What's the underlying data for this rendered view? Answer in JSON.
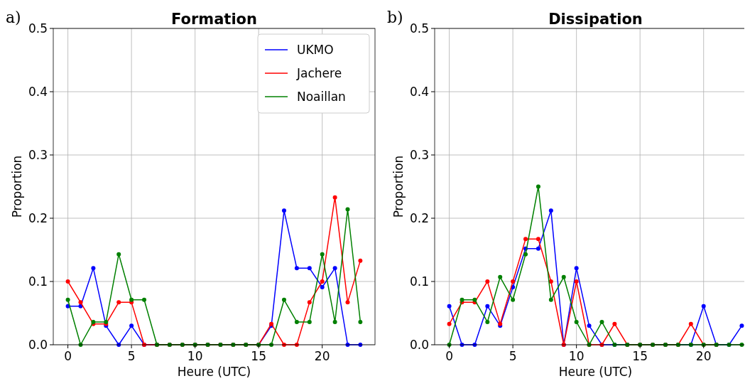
{
  "chart_data": [
    {
      "type": "line",
      "title": "Formation",
      "xlabel": "Heure (UTC)",
      "ylabel": "Proportion",
      "annotations": [
        "a)"
      ],
      "x": [
        0,
        1,
        2,
        3,
        4,
        5,
        6,
        7,
        8,
        9,
        10,
        11,
        12,
        13,
        14,
        15,
        16,
        17,
        18,
        19,
        20,
        21,
        22,
        23
      ],
      "xlim": [
        -1.15,
        24.15
      ],
      "xticks": [
        0,
        5,
        10,
        15,
        20
      ],
      "ylim": [
        0,
        0.5
      ],
      "yticks": [
        {
          "value": 0,
          "label": "0.0"
        },
        {
          "value": 0.1,
          "label": "0.1"
        },
        {
          "value": 0.2,
          "label": "0.2"
        },
        {
          "value": 0.3,
          "label": "0.3"
        },
        {
          "value": 0.4,
          "label": "0.4"
        },
        {
          "value": 0.5,
          "label": "0.5"
        }
      ],
      "grid": true,
      "legend": "top right",
      "marker": "circle",
      "line_style": "solid",
      "series": [
        {
          "name": "UKMO",
          "color": "#0000ff",
          "values": [
            0.061,
            0.061,
            0.121,
            0.03,
            0,
            0.03,
            0,
            0,
            0,
            0,
            0,
            0,
            0,
            0,
            0,
            0,
            0.03,
            0.212,
            0.121,
            0.121,
            0.091,
            0.121,
            0,
            0
          ]
        },
        {
          "name": "Jachere",
          "color": "#ff0000",
          "values": [
            0.1,
            0.067,
            0.033,
            0.033,
            0.067,
            0.067,
            0,
            0,
            0,
            0,
            0,
            0,
            0,
            0,
            0,
            0,
            0.033,
            0,
            0,
            0.067,
            0.1,
            0.233,
            0.067,
            0.133
          ]
        },
        {
          "name": "Noaillan",
          "color": "#008000",
          "values": [
            0.071,
            0,
            0.036,
            0.036,
            0.143,
            0.071,
            0.071,
            0,
            0,
            0,
            0,
            0,
            0,
            0,
            0,
            0,
            0,
            0.071,
            0.036,
            0.036,
            0.143,
            0.036,
            0.214,
            0.036
          ]
        }
      ]
    },
    {
      "type": "line",
      "title": "Dissipation",
      "xlabel": "Heure (UTC)",
      "ylabel": "Proportion",
      "annotations": [
        "b)"
      ],
      "x": [
        0,
        1,
        2,
        3,
        4,
        5,
        6,
        7,
        8,
        9,
        10,
        11,
        12,
        13,
        14,
        15,
        16,
        17,
        18,
        19,
        20,
        21,
        22,
        23
      ],
      "xlim": [
        -1.15,
        24.15
      ],
      "xticks": [
        0,
        5,
        10,
        15,
        20
      ],
      "ylim": [
        0,
        0.5
      ],
      "yticks": [
        {
          "value": 0,
          "label": "0.0"
        },
        {
          "value": 0.1,
          "label": "0.1"
        },
        {
          "value": 0.2,
          "label": "0.2"
        },
        {
          "value": 0.3,
          "label": "0.3"
        },
        {
          "value": 0.4,
          "label": "0.4"
        },
        {
          "value": 0.5,
          "label": "0.5"
        }
      ],
      "grid": true,
      "marker": "circle",
      "line_style": "solid",
      "series": [
        {
          "color": "#0000ff",
          "values": [
            0.061,
            0,
            0,
            0.061,
            0.03,
            0.091,
            0.152,
            0.152,
            0.212,
            0,
            0.121,
            0.03,
            0,
            0,
            0,
            0,
            0,
            0,
            0,
            0,
            0.061,
            0,
            0,
            0.03
          ]
        },
        {
          "color": "#ff0000",
          "values": [
            0.033,
            0.067,
            0.067,
            0.1,
            0.033,
            0.1,
            0.167,
            0.167,
            0.1,
            0,
            0.1,
            0,
            0,
            0.033,
            0,
            0,
            0,
            0,
            0,
            0.033,
            0,
            0,
            null,
            null
          ]
        },
        {
          "color": "#008000",
          "values": [
            0,
            0.071,
            0.071,
            0.036,
            0.107,
            0.071,
            0.143,
            0.25,
            0.071,
            0.107,
            0.036,
            0,
            0.036,
            0,
            0,
            0,
            0,
            0,
            0,
            0,
            0,
            0,
            0,
            0
          ]
        }
      ]
    }
  ]
}
